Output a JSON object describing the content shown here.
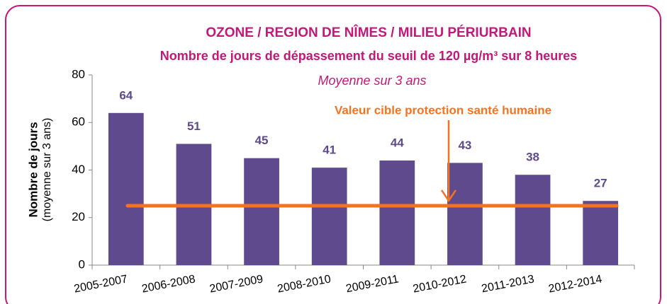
{
  "chart_data": {
    "type": "bar",
    "title": "OZONE / REGION DE NÎMES / MILIEU PÉRIURBAIN",
    "subtitle": "Nombre de jours de dépassement du seuil de 120 µg/m³ sur 8 heures",
    "note": "Moyenne sur 3 ans",
    "ylabel": "Nombre de jours",
    "ylabel_note": "(moyenne sur 3 ans)",
    "categories": [
      "2005-2007",
      "2006-2008",
      "2007-2009",
      "2008-2010",
      "2009-2011",
      "2010-2012",
      "2011-2013",
      "2012-2014"
    ],
    "values": [
      64,
      51,
      45,
      41,
      44,
      43,
      38,
      27
    ],
    "color": "#5e4a8c",
    "ylim": [
      0,
      80
    ],
    "yticks": [
      0,
      20,
      40,
      60,
      80
    ],
    "reference_line": {
      "value": 25,
      "label": "Valeur cible protection santé humaine",
      "color": "#f47321"
    }
  }
}
